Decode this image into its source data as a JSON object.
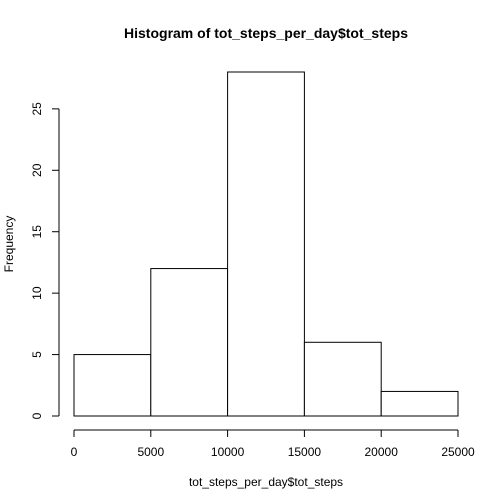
{
  "chart_data": {
    "type": "bar",
    "title": "Histogram of tot_steps_per_day$tot_steps",
    "xlabel": "tot_steps_per_day$tot_steps",
    "ylabel": "Frequency",
    "bins": [
      {
        "from": 0,
        "to": 5000,
        "count": 5
      },
      {
        "from": 5000,
        "to": 10000,
        "count": 12
      },
      {
        "from": 10000,
        "to": 15000,
        "count": 28
      },
      {
        "from": 15000,
        "to": 20000,
        "count": 6
      },
      {
        "from": 20000,
        "to": 25000,
        "count": 2
      }
    ],
    "xlim": [
      0,
      25000
    ],
    "ylim": [
      0,
      28
    ],
    "x_ticks": [
      0,
      5000,
      10000,
      15000,
      20000,
      25000
    ],
    "y_ticks": [
      0,
      5,
      10,
      15,
      20,
      25
    ],
    "bar_color": "#ffffff",
    "edge_color": "#000000",
    "grid": false,
    "legend": "none"
  }
}
